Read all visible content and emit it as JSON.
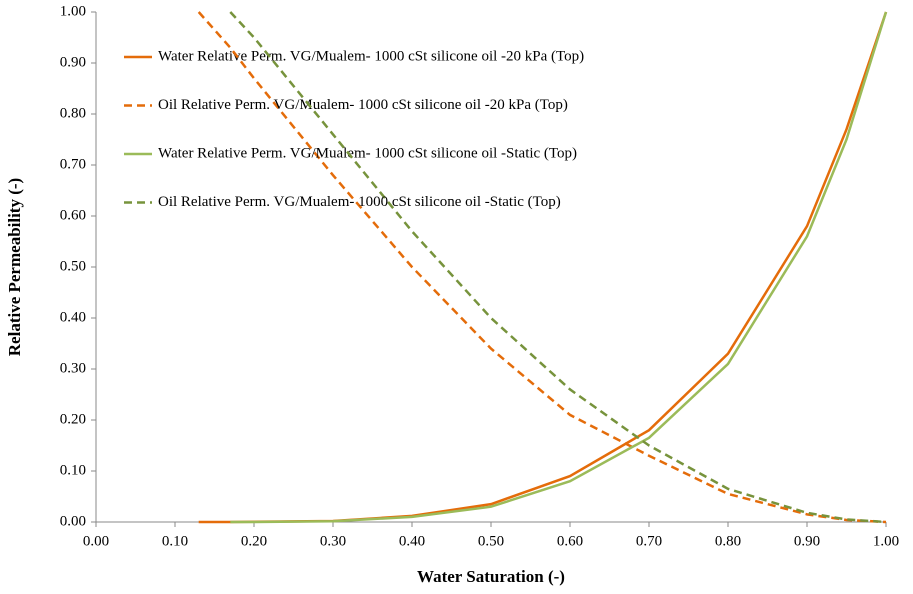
{
  "chart_data": {
    "type": "line",
    "x_label": "Water Saturation (-)",
    "y_label": "Relative Permeability (-)",
    "x": [
      0.13,
      0.17,
      0.2,
      0.3,
      0.4,
      0.5,
      0.6,
      0.7,
      0.8,
      0.9,
      0.95,
      1.0
    ],
    "series": [
      {
        "name": "Water Relative Perm. VG/Mualem-  1000 cSt silicone oil -20 kPa (Top)",
        "color": "#e46c0a",
        "dash": false,
        "values": [
          0,
          0,
          0.0005,
          0.002,
          0.012,
          0.035,
          0.09,
          0.18,
          0.33,
          0.58,
          0.77,
          1.0
        ]
      },
      {
        "name": "Oil  Relative Perm. VG/Mualem-  1000 cSt silicone oil -20 kPa (Top)",
        "color": "#e46c0a",
        "dash": true,
        "values": [
          1.0,
          0.93,
          0.87,
          0.68,
          0.5,
          0.34,
          0.21,
          0.13,
          0.055,
          0.015,
          0.004,
          0
        ]
      },
      {
        "name": "Water Relative Perm. VG/Mualem-  1000 cSt silicone oil -Static (Top)",
        "color": "#9bbb59",
        "dash": false,
        "values": [
          null,
          0,
          0,
          0.0015,
          0.01,
          0.03,
          0.08,
          0.165,
          0.31,
          0.56,
          0.75,
          1.0
        ]
      },
      {
        "name": "Oil Relative Perm. VG/Mualem-  1000 cSt silicone oil -Static (Top)",
        "color": "#77933c",
        "dash": true,
        "values": [
          null,
          1.0,
          0.95,
          0.76,
          0.57,
          0.4,
          0.26,
          0.15,
          0.065,
          0.018,
          0.005,
          0
        ]
      }
    ],
    "xlim": [
      0,
      1
    ],
    "ylim": [
      0,
      1
    ],
    "xticks": [
      {
        "value": 0,
        "label": "0.00"
      },
      {
        "value": 0.1,
        "label": "0.10"
      },
      {
        "value": 0.2,
        "label": "0.20"
      },
      {
        "value": 0.3,
        "label": "0.30"
      },
      {
        "value": 0.4,
        "label": "0.40"
      },
      {
        "value": 0.5,
        "label": "0.50"
      },
      {
        "value": 0.6,
        "label": "0.60"
      },
      {
        "value": 0.7,
        "label": "0.70"
      },
      {
        "value": 0.8,
        "label": "0.80"
      },
      {
        "value": 0.9,
        "label": "0.90"
      },
      {
        "value": 1,
        "label": "1.00"
      }
    ],
    "yticks": [
      {
        "value": 0,
        "label": "0.00"
      },
      {
        "value": 0.1,
        "label": "0.10"
      },
      {
        "value": 0.2,
        "label": "0.20"
      },
      {
        "value": 0.3,
        "label": "0.30"
      },
      {
        "value": 0.4,
        "label": "0.40"
      },
      {
        "value": 0.5,
        "label": "0.50"
      },
      {
        "value": 0.6,
        "label": "0.60"
      },
      {
        "value": 0.7,
        "label": "0.70"
      },
      {
        "value": 0.8,
        "label": "0.80"
      },
      {
        "value": 0.9,
        "label": "0.90"
      },
      {
        "value": 1,
        "label": "1.00"
      }
    ],
    "legend": "top-left",
    "grid": false
  }
}
